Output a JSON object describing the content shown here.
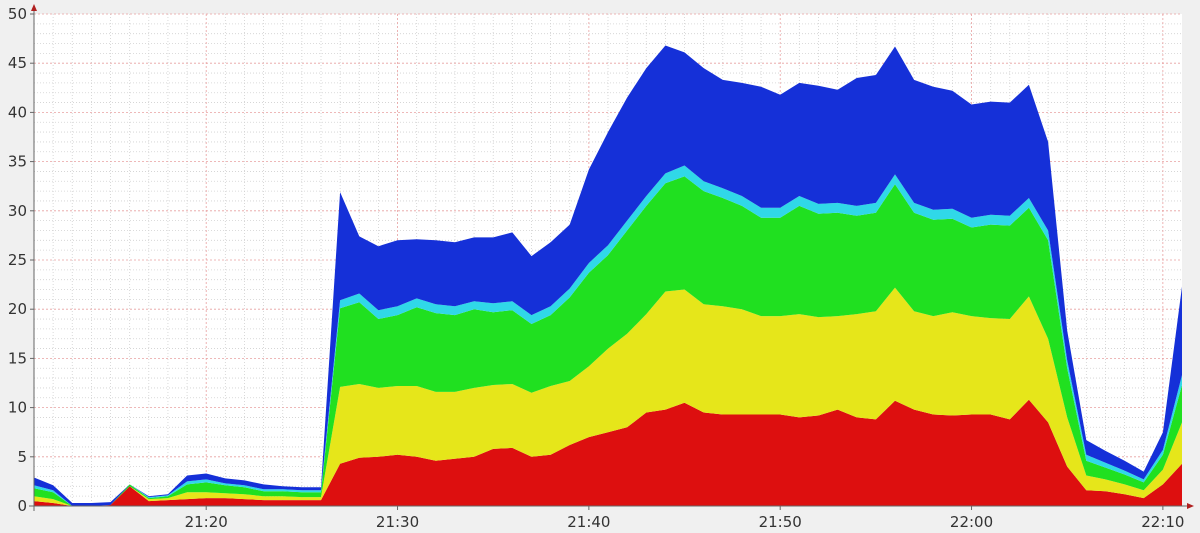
{
  "chart_data": {
    "type": "area",
    "stacked": true,
    "title": "",
    "xlabel": "",
    "ylabel": "",
    "x_range": [
      "21:11",
      "22:11"
    ],
    "ylim": [
      0,
      50
    ],
    "y_ticks": [
      0,
      5,
      10,
      15,
      20,
      25,
      30,
      35,
      40,
      45,
      50
    ],
    "x_ticks": [
      "21:20",
      "21:30",
      "21:40",
      "21:50",
      "22:00",
      "22:10"
    ],
    "grid": true,
    "legend": "none",
    "x": [
      "21:11",
      "21:12",
      "21:13",
      "21:14",
      "21:15",
      "21:16",
      "21:17",
      "21:18",
      "21:19",
      "21:20",
      "21:21",
      "21:22",
      "21:23",
      "21:24",
      "21:25",
      "21:26",
      "21:27",
      "21:28",
      "21:29",
      "21:30",
      "21:31",
      "21:32",
      "21:33",
      "21:34",
      "21:35",
      "21:36",
      "21:37",
      "21:38",
      "21:39",
      "21:40",
      "21:41",
      "21:42",
      "21:43",
      "21:44",
      "21:45",
      "21:46",
      "21:47",
      "21:48",
      "21:49",
      "21:50",
      "21:51",
      "21:52",
      "21:53",
      "21:54",
      "21:55",
      "21:56",
      "21:57",
      "21:58",
      "21:59",
      "22:00",
      "22:01",
      "22:02",
      "22:03",
      "22:04",
      "22:05",
      "22:06",
      "22:07",
      "22:08",
      "22:09",
      "22:10",
      "22:11"
    ],
    "series": [
      {
        "color": "#dd0f0f",
        "values": [
          0.5,
          0.3,
          0.0,
          0.0,
          0.1,
          2.0,
          0.5,
          0.6,
          0.7,
          0.8,
          0.8,
          0.7,
          0.6,
          0.6,
          0.6,
          0.6,
          4.3,
          4.9,
          5.0,
          5.2,
          5.0,
          4.6,
          4.8,
          5.0,
          5.8,
          5.9,
          5.0,
          5.2,
          6.2,
          7.0,
          7.5,
          8.0,
          9.5,
          9.8,
          10.5,
          9.5,
          9.3,
          9.3,
          9.3,
          9.3,
          9.0,
          9.2,
          9.8,
          9.0,
          8.8,
          10.7,
          9.8,
          9.3,
          9.2,
          9.3,
          9.3,
          8.8,
          10.8,
          8.5,
          4.0,
          1.6,
          1.5,
          1.2,
          0.8,
          2.2,
          4.3
        ]
      },
      {
        "color": "#e6e61a",
        "values": [
          0.5,
          0.4,
          0.0,
          0.0,
          0.0,
          0.0,
          0.2,
          0.2,
          0.7,
          0.6,
          0.5,
          0.5,
          0.4,
          0.4,
          0.3,
          0.3,
          7.8,
          7.5,
          7.0,
          7.0,
          7.2,
          7.0,
          6.8,
          7.0,
          6.5,
          6.5,
          6.5,
          7.0,
          6.5,
          7.2,
          8.5,
          9.5,
          10.0,
          12.0,
          11.5,
          11.0,
          11.0,
          10.7,
          10.0,
          10.0,
          10.5,
          10.0,
          9.5,
          10.5,
          11.0,
          11.5,
          10.0,
          10.0,
          10.5,
          10.0,
          9.8,
          10.2,
          10.5,
          8.5,
          5.0,
          1.5,
          1.2,
          1.0,
          0.8,
          1.5,
          4.2
        ]
      },
      {
        "color": "#20e020",
        "values": [
          0.8,
          0.7,
          0.0,
          0.0,
          0.0,
          0.2,
          0.1,
          0.2,
          0.8,
          1.0,
          0.8,
          0.7,
          0.5,
          0.5,
          0.5,
          0.5,
          8.0,
          8.3,
          7.0,
          7.2,
          8.0,
          8.0,
          7.8,
          8.0,
          7.4,
          7.5,
          7.0,
          7.2,
          8.5,
          9.5,
          9.5,
          10.5,
          11.0,
          11.0,
          11.5,
          11.5,
          11.0,
          10.5,
          10.0,
          10.0,
          11.0,
          10.5,
          10.5,
          10.0,
          10.0,
          10.5,
          10.0,
          9.8,
          9.5,
          9.0,
          9.5,
          9.5,
          9.0,
          10.0,
          5.0,
          1.5,
          1.2,
          1.0,
          0.8,
          1.5,
          3.8
        ]
      },
      {
        "color": "#30d8e8",
        "values": [
          0.3,
          0.2,
          0.0,
          0.0,
          0.0,
          0.0,
          0.1,
          0.1,
          0.3,
          0.3,
          0.2,
          0.2,
          0.2,
          0.2,
          0.2,
          0.2,
          0.8,
          0.9,
          0.9,
          0.9,
          0.9,
          0.9,
          0.9,
          0.8,
          0.9,
          0.9,
          0.9,
          0.9,
          0.9,
          1.0,
          1.0,
          1.0,
          1.0,
          1.0,
          1.1,
          1.0,
          1.0,
          1.0,
          1.0,
          1.0,
          1.0,
          1.0,
          1.0,
          1.0,
          1.0,
          1.0,
          1.0,
          1.0,
          1.0,
          1.0,
          1.0,
          1.0,
          1.0,
          1.0,
          0.8,
          0.6,
          0.5,
          0.4,
          0.3,
          0.5,
          1.0
        ]
      },
      {
        "color": "#1530d8",
        "values": [
          0.8,
          0.5,
          0.3,
          0.3,
          0.3,
          0.0,
          0.1,
          0.1,
          0.6,
          0.6,
          0.5,
          0.5,
          0.5,
          0.3,
          0.3,
          0.3,
          11.0,
          5.8,
          6.5,
          6.7,
          6.0,
          6.5,
          6.5,
          6.5,
          6.7,
          7.0,
          6.0,
          6.5,
          6.5,
          9.5,
          11.5,
          12.5,
          13.0,
          13.0,
          11.5,
          11.5,
          11.0,
          11.5,
          12.3,
          11.5,
          11.5,
          12.0,
          11.5,
          13.0,
          13.0,
          13.0,
          12.5,
          12.5,
          12.0,
          11.5,
          11.5,
          11.5,
          11.5,
          9.0,
          3.0,
          1.5,
          1.2,
          1.0,
          0.8,
          1.8,
          9.0
        ]
      }
    ]
  }
}
